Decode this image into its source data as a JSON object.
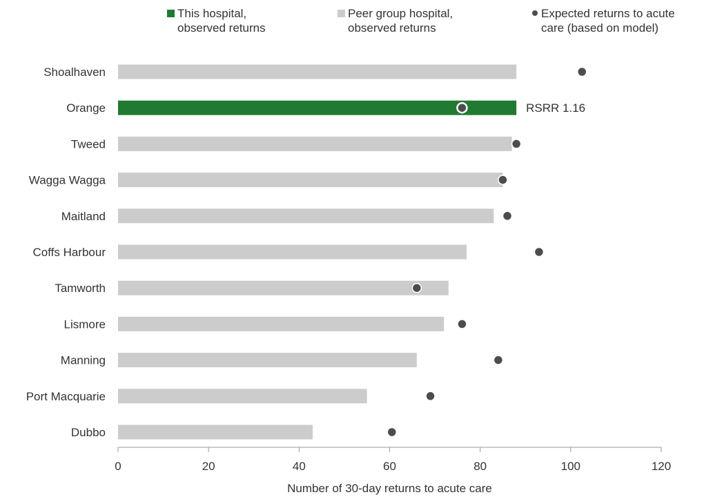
{
  "chart_data": {
    "type": "bar",
    "orientation": "horizontal",
    "categories": [
      "Shoalhaven",
      "Orange",
      "Tweed",
      "Wagga Wagga",
      "Maitland",
      "Coffs Harbour",
      "Tamworth",
      "Lismore",
      "Manning",
      "Port Macquarie",
      "Dubbo"
    ],
    "series": [
      {
        "name": "This hospital,\nobserved returns",
        "role": "highlight",
        "color": "#217a32",
        "values": [
          null,
          88,
          null,
          null,
          null,
          null,
          null,
          null,
          null,
          null,
          null
        ]
      },
      {
        "name": "Peer group hospital,\nobserved returns",
        "role": "peer",
        "color": "#cccccc",
        "values": [
          88,
          null,
          87,
          85,
          83,
          77,
          73,
          72,
          66,
          55,
          43
        ]
      },
      {
        "name": "Expected returns to acute\ncare (based on model)",
        "role": "expected",
        "marker": "dot",
        "color": "#4d4d4d",
        "values": [
          102.5,
          76,
          88,
          85,
          86,
          93,
          66,
          76,
          84,
          69,
          60.5
        ]
      }
    ],
    "xlabel": "Number of 30-day returns to acute care",
    "ylabel": "",
    "xlim": [
      0,
      120
    ],
    "xticks": [
      0,
      20,
      40,
      60,
      80,
      100,
      120
    ],
    "grid": false,
    "legend_position": "top",
    "annotations": [
      {
        "category": "Orange",
        "text": "RSRR 1.16"
      }
    ]
  }
}
